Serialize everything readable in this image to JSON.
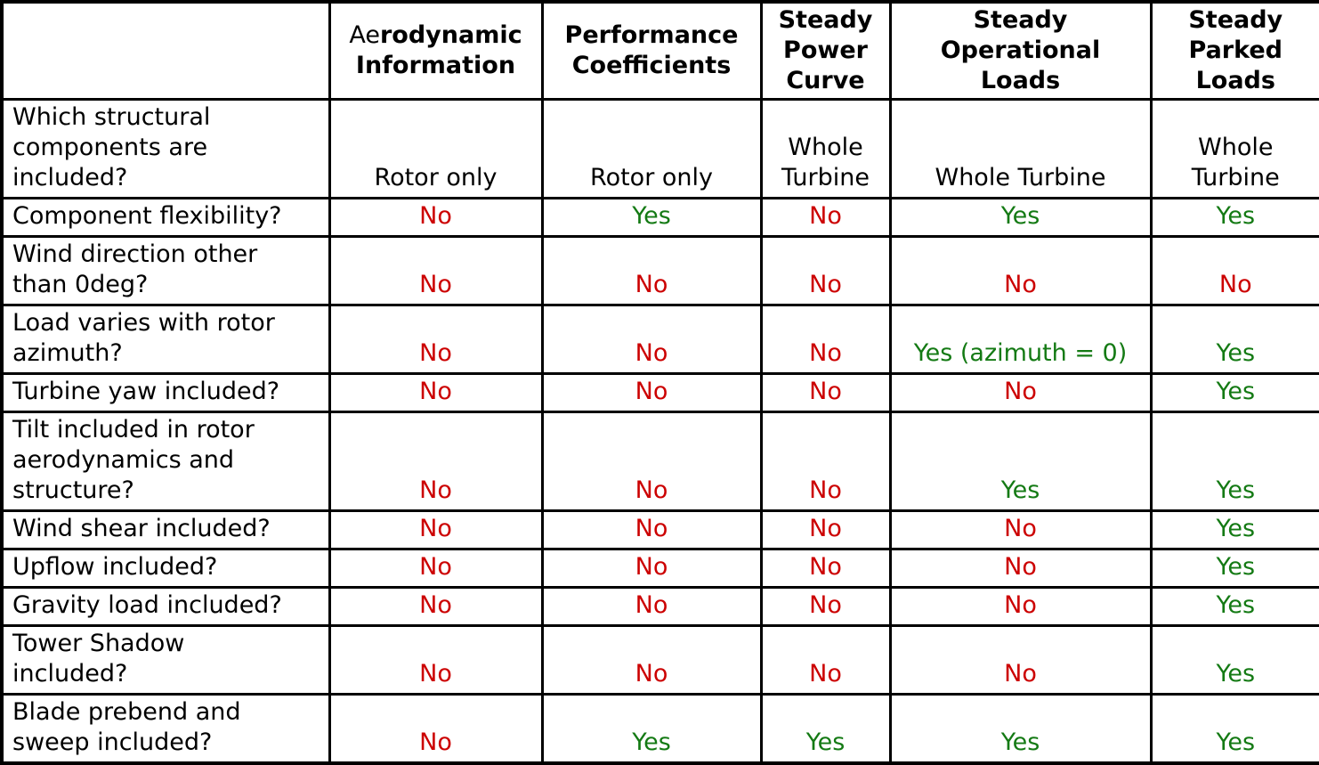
{
  "colors": {
    "yes": "#147A14",
    "no": "#CC0000",
    "text": "#000000",
    "border": "#000000",
    "background": "#FFFFFF"
  },
  "table": {
    "corner_label": "",
    "columns": [
      {
        "prefix": "Ae",
        "label": "rodynamic\nInformation"
      },
      {
        "label": "Performance\nCoefficients"
      },
      {
        "label": "Steady\nPower\nCurve"
      },
      {
        "label": "Steady\nOperational\nLoads"
      },
      {
        "label": "Steady\nParked\nLoads"
      }
    ],
    "rows": [
      {
        "label": "Which structural\ncomponents are\nincluded?",
        "values": [
          "Rotor only",
          "Rotor only",
          "Whole\nTurbine",
          "Whole Turbine",
          "Whole\nTurbine"
        ]
      },
      {
        "label": "Component flexibility?",
        "values": [
          "No",
          "Yes",
          "No",
          "Yes",
          "Yes"
        ]
      },
      {
        "label": "Wind direction other\nthan 0deg?",
        "values": [
          "No",
          "No",
          "No",
          "No",
          "No"
        ]
      },
      {
        "label": "Load varies with rotor\nazimuth?",
        "values": [
          "No",
          "No",
          "No",
          "Yes (azimuth = 0)",
          "Yes"
        ]
      },
      {
        "label": "Turbine yaw included?",
        "values": [
          "No",
          "No",
          "No",
          "No",
          "Yes"
        ]
      },
      {
        "label": "Tilt included in rotor\naerodynamics and\nstructure?",
        "values": [
          "No",
          "No",
          "No",
          "Yes",
          "Yes"
        ]
      },
      {
        "label": "Wind shear included?",
        "values": [
          "No",
          "No",
          "No",
          "No",
          "Yes"
        ]
      },
      {
        "label": "Upflow included?",
        "values": [
          "No",
          "No",
          "No",
          "No",
          "Yes"
        ]
      },
      {
        "label": "Gravity load included?",
        "values": [
          "No",
          "No",
          "No",
          "No",
          "Yes"
        ]
      },
      {
        "label": "Tower Shadow\nincluded?",
        "values": [
          "No",
          "No",
          "No",
          "No",
          "Yes"
        ]
      },
      {
        "label": "Blade prebend and\nsweep included?",
        "values": [
          "No",
          "Yes",
          "Yes",
          "Yes",
          "Yes"
        ]
      }
    ]
  }
}
